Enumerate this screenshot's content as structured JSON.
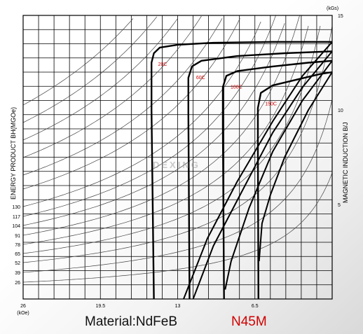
{
  "chart_data": {
    "type": "line",
    "title": "",
    "material_label": "Material:NdFeB",
    "grade_label": "N45M",
    "watermark": "DEXING",
    "xlabel": "",
    "x_unit": "(kOe)",
    "x_ticks": [
      "26",
      "19.5",
      "13",
      "6.5"
    ],
    "x_tick_values": [
      26,
      19.5,
      13,
      6.5
    ],
    "xlim": [
      26,
      0
    ],
    "ylabel_right": "MAGNETIC INDUCTION B/J",
    "y_unit": "(kGs)",
    "y_ticks": [
      "15",
      "10",
      "5"
    ],
    "y_tick_values": [
      15,
      10,
      5
    ],
    "ylim": [
      0,
      15
    ],
    "ylabel_left": "ENERGY PRODUCT BH(MGOe)",
    "energy_ticks": [
      "130",
      "117",
      "104",
      "91",
      "78",
      "65",
      "52",
      "39",
      "26"
    ],
    "energy_values": [
      130,
      117,
      104,
      91,
      78,
      65,
      52,
      39,
      26
    ],
    "grid": true,
    "colors": {
      "labels": "#d00000",
      "curves": "#000000",
      "grid": "#000000",
      "iso": "#444444"
    },
    "series": [
      {
        "name": "20C",
        "Br": 13.6,
        "j_curve": [
          [
            15.0,
            0.0
          ],
          [
            15.2,
            10.0
          ],
          [
            15.2,
            12.5
          ],
          [
            15.0,
            13.0
          ],
          [
            14.5,
            13.3
          ],
          [
            13.0,
            13.45
          ],
          [
            10.0,
            13.55
          ],
          [
            5.0,
            13.6
          ],
          [
            0.0,
            13.6
          ]
        ],
        "b_curve": [
          [
            12.5,
            0.0
          ],
          [
            10.5,
            3.2
          ],
          [
            8.0,
            6.2
          ],
          [
            5.0,
            9.4
          ],
          [
            2.5,
            11.8
          ],
          [
            0.0,
            13.6
          ]
        ]
      },
      {
        "name": "60C",
        "Br": 13.1,
        "j_curve": [
          [
            12.0,
            0.0
          ],
          [
            12.1,
            9.8
          ],
          [
            12.1,
            11.7
          ],
          [
            11.8,
            12.3
          ],
          [
            11.0,
            12.6
          ],
          [
            8.0,
            12.85
          ],
          [
            4.0,
            13.0
          ],
          [
            0.0,
            13.1
          ]
        ],
        "b_curve": [
          [
            11.7,
            0.0
          ],
          [
            10.0,
            2.8
          ],
          [
            7.5,
            5.8
          ],
          [
            5.0,
            8.8
          ],
          [
            2.5,
            11.2
          ],
          [
            0.0,
            13.1
          ]
        ]
      },
      {
        "name": "100C",
        "Br": 12.6,
        "j_curve": [
          [
            9.1,
            0.0
          ],
          [
            9.2,
            9.0
          ],
          [
            9.2,
            11.2
          ],
          [
            8.9,
            11.8
          ],
          [
            8.0,
            12.05
          ],
          [
            5.0,
            12.3
          ],
          [
            2.0,
            12.5
          ],
          [
            0.0,
            12.6
          ]
        ],
        "b_curve": [
          [
            9.0,
            0.5
          ],
          [
            8.5,
            2.0
          ],
          [
            7.0,
            4.8
          ],
          [
            5.0,
            7.8
          ],
          [
            2.5,
            10.5
          ],
          [
            0.0,
            12.6
          ]
        ]
      },
      {
        "name": "150C",
        "Br": 12.0,
        "j_curve": [
          [
            6.2,
            0.0
          ],
          [
            6.25,
            8.0
          ],
          [
            6.25,
            10.1
          ],
          [
            6.0,
            10.9
          ],
          [
            5.0,
            11.3
          ],
          [
            3.0,
            11.6
          ],
          [
            1.0,
            11.9
          ],
          [
            0.0,
            12.0
          ]
        ],
        "b_curve": [
          [
            6.15,
            2.0
          ],
          [
            5.9,
            4.0
          ],
          [
            5.2,
            5.5
          ],
          [
            4.0,
            7.5
          ],
          [
            2.0,
            10.0
          ],
          [
            0.0,
            12.0
          ]
        ]
      }
    ],
    "label_positions_hint": "labels sit at the knee of each J curve"
  }
}
